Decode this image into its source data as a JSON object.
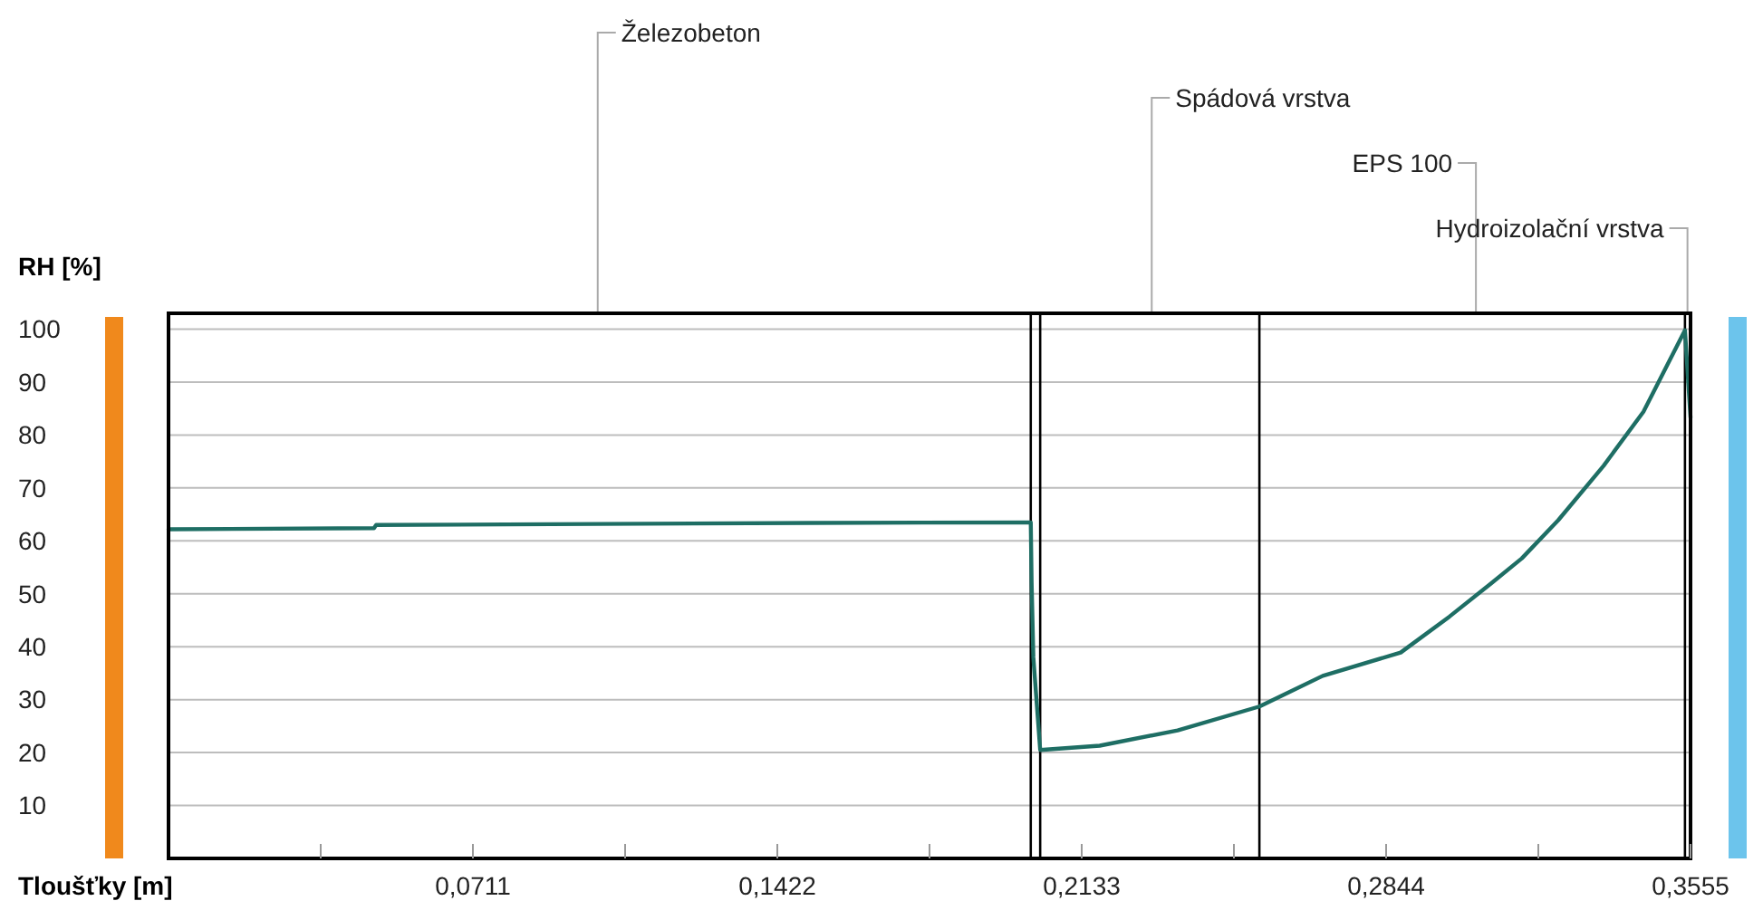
{
  "chart_data": {
    "type": "line",
    "xlabel": "Tloušťky [m]",
    "ylabel": "RH [%]",
    "xlim": [
      0,
      0.3555
    ],
    "ylim": [
      0,
      103
    ],
    "xticks": [
      {
        "value": 0.03555,
        "label": null
      },
      {
        "value": 0.0711,
        "label": "0,0711"
      },
      {
        "value": 0.10665,
        "label": null
      },
      {
        "value": 0.1422,
        "label": "0,1422"
      },
      {
        "value": 0.17775,
        "label": null
      },
      {
        "value": 0.2133,
        "label": "0,2133"
      },
      {
        "value": 0.24885,
        "label": null
      },
      {
        "value": 0.2844,
        "label": "0,2844"
      },
      {
        "value": 0.31995,
        "label": null
      },
      {
        "value": 0.3555,
        "label": "0,3555"
      }
    ],
    "yticks": [
      10,
      20,
      30,
      40,
      50,
      60,
      70,
      80,
      90,
      100
    ],
    "grid": "y",
    "marker": "none",
    "line_style": "solid",
    "series": [
      {
        "color": "#1e6e64",
        "x": [
          0,
          0.048,
          0.0485,
          0.1,
          0.15,
          0.2014,
          0.2016,
          0.202,
          0.2036,
          0.2175,
          0.2357,
          0.2548,
          0.2696,
          0.2878,
          0.2992,
          0.309,
          0.3161,
          0.3246,
          0.3352,
          0.3445,
          0.3542,
          0.3555
        ],
        "values": [
          62.2,
          62.4,
          63,
          63.2,
          63.4,
          63.5,
          52,
          38,
          20.5,
          21.3,
          24.2,
          28.7,
          34.5,
          38.9,
          45.7,
          52,
          56.7,
          63.9,
          74.2,
          84.4,
          99.8,
          83.3
        ]
      }
    ],
    "ref_lines": [
      {
        "axis": "x",
        "value": 0.2014,
        "color": "#000000"
      },
      {
        "axis": "x",
        "value": 0.2036,
        "color": "#000000"
      },
      {
        "axis": "x",
        "value": 0.2548,
        "color": "#000000"
      },
      {
        "axis": "x",
        "value": 0.3542,
        "color": "#000000"
      }
    ],
    "annotations": [
      "Železobeton",
      "Spádová vrstva",
      "EPS 100",
      "Hydroizolační vrstva"
    ]
  }
}
